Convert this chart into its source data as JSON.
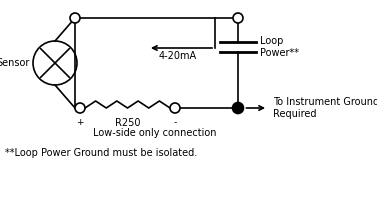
{
  "bg_color": "#ffffff",
  "line_color": "#000000",
  "title_text": "Low-side only connection",
  "footnote_text": "**Loop Power Ground must be isolated.",
  "label_sensor": "Sensor",
  "label_current": "4-20mA",
  "label_r250": "R250",
  "label_plus": "+",
  "label_minus": "-",
  "label_loop": "Loop\nPower**",
  "label_ground": "To Instrument Ground\nRequired",
  "figsize": [
    3.77,
    2.02
  ],
  "dpi": 100
}
